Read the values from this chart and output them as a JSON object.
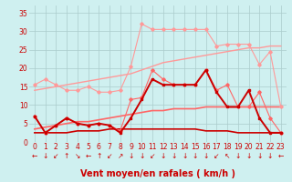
{
  "x": [
    0,
    1,
    2,
    3,
    4,
    5,
    6,
    7,
    8,
    9,
    10,
    11,
    12,
    13,
    14,
    15,
    16,
    17,
    18,
    19,
    20,
    21,
    22,
    23
  ],
  "series": [
    {
      "label": "rafales_upper",
      "color": "#ff9999",
      "linewidth": 0.8,
      "marker": "D",
      "markersize": 1.8,
      "values": [
        15.5,
        17.0,
        15.5,
        14.0,
        14.0,
        15.0,
        13.5,
        13.5,
        14.0,
        20.5,
        32.0,
        30.5,
        30.5,
        30.5,
        30.5,
        30.5,
        30.5,
        26.0,
        26.5,
        26.5,
        26.5,
        21.0,
        24.5,
        9.5
      ]
    },
    {
      "label": "trend_upper",
      "color": "#ff9999",
      "linewidth": 1.0,
      "marker": null,
      "markersize": 0,
      "values": [
        14.0,
        14.5,
        15.0,
        15.5,
        16.0,
        16.5,
        17.0,
        17.5,
        18.0,
        18.5,
        19.5,
        20.5,
        21.5,
        22.0,
        22.5,
        23.0,
        23.5,
        24.0,
        24.5,
        25.0,
        25.5,
        25.5,
        26.0,
        26.0
      ]
    },
    {
      "label": "rafales_mid",
      "color": "#ff6666",
      "linewidth": 0.8,
      "marker": "D",
      "markersize": 1.8,
      "values": [
        7.0,
        2.5,
        4.5,
        6.5,
        5.0,
        4.5,
        5.0,
        4.5,
        3.0,
        11.5,
        12.0,
        19.5,
        17.0,
        15.5,
        15.5,
        15.5,
        19.5,
        14.0,
        15.5,
        9.5,
        9.5,
        13.5,
        6.5,
        2.5
      ]
    },
    {
      "label": "trend_mid",
      "color": "#ff6666",
      "linewidth": 1.2,
      "marker": null,
      "markersize": 0,
      "values": [
        3.5,
        4.0,
        4.5,
        5.0,
        5.5,
        5.5,
        6.0,
        6.5,
        7.0,
        7.5,
        8.0,
        8.5,
        8.5,
        9.0,
        9.0,
        9.0,
        9.5,
        9.5,
        9.5,
        9.5,
        9.5,
        9.5,
        9.5,
        9.5
      ]
    },
    {
      "label": "vent_moyen",
      "color": "#cc0000",
      "linewidth": 1.4,
      "marker": "s",
      "markersize": 2.0,
      "values": [
        7.0,
        2.5,
        4.5,
        6.5,
        5.0,
        4.5,
        5.0,
        4.5,
        2.5,
        6.5,
        11.5,
        17.0,
        15.5,
        15.5,
        15.5,
        15.5,
        19.5,
        13.5,
        9.5,
        9.5,
        14.0,
        6.5,
        2.5,
        2.5
      ]
    },
    {
      "label": "trend_low",
      "color": "#cc0000",
      "linewidth": 1.2,
      "marker": null,
      "markersize": 0,
      "values": [
        2.5,
        2.5,
        2.5,
        2.5,
        3.0,
        3.0,
        3.0,
        3.5,
        3.5,
        3.5,
        3.5,
        3.5,
        3.5,
        3.5,
        3.5,
        3.5,
        3.0,
        3.0,
        3.0,
        2.5,
        2.5,
        2.5,
        2.5,
        2.5
      ]
    }
  ],
  "xlabel": "Vent moyen/en rafales ( km/h )",
  "xlabel_color": "#cc0000",
  "xlabel_fontsize": 7,
  "xticks": [
    0,
    1,
    2,
    3,
    4,
    5,
    6,
    7,
    8,
    9,
    10,
    11,
    12,
    13,
    14,
    15,
    16,
    17,
    18,
    19,
    20,
    21,
    22,
    23
  ],
  "yticks": [
    0,
    5,
    10,
    15,
    20,
    25,
    30,
    35
  ],
  "ylim": [
    0,
    37
  ],
  "xlim": [
    -0.5,
    23.5
  ],
  "bg_color": "#cff0f0",
  "grid_color": "#aacccc",
  "tick_color": "#cc0000",
  "tick_fontsize": 5.5,
  "arrows": [
    "←",
    "↓",
    "↙",
    "↑",
    "↘",
    "←",
    "↑",
    "↙",
    "↗",
    "↓",
    "↓",
    "↙",
    "↓",
    "↓",
    "↓",
    "↓",
    "↓",
    "↙",
    "↖",
    "↓",
    "↓",
    "↓",
    "↓",
    "←"
  ],
  "arrow_color": "#cc0000",
  "arrow_fontsize": 5.5
}
